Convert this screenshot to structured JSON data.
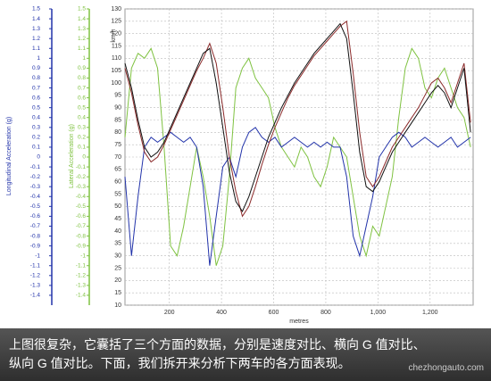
{
  "chart_data": {
    "type": "line",
    "x_label": "metres",
    "y_label": "km/h",
    "y2_label": "Lateral Acceleration (g)",
    "y3_label": "Longitudinal Acceleration (g)",
    "xlim": [
      30,
      1365
    ],
    "xticks": [
      200,
      400,
      600,
      800,
      {
        "value": 1000,
        "label": "1,000"
      },
      {
        "value": 1200,
        "label": "1,200"
      }
    ],
    "ylim": [
      10,
      130
    ],
    "yticks": [
      10,
      15,
      20,
      25,
      30,
      35,
      40,
      45,
      50,
      55,
      60,
      65,
      70,
      75,
      80,
      85,
      90,
      95,
      100,
      105,
      110,
      115,
      120,
      125,
      130
    ],
    "y2lim": [
      -1.5,
      1.5
    ],
    "y2ticks": [
      -1.4,
      -1.3,
      -1.2,
      -1.1,
      -1,
      -0.9,
      -0.8,
      -0.7,
      -0.6,
      -0.5,
      -0.4,
      -0.3,
      -0.2,
      -0.1,
      0,
      0.1,
      0.2,
      0.3,
      0.4,
      0.5,
      0.6,
      0.7,
      0.8,
      0.9,
      1,
      1.1,
      1.2,
      1.3,
      1.4,
      1.5
    ],
    "y2color": "#7fc241",
    "y3lim": [
      -1.5,
      1.5
    ],
    "y3ticks": [
      -1.4,
      -1.3,
      -1.2,
      -1.1,
      -1,
      -0.9,
      -0.8,
      -0.7,
      -0.6,
      -0.5,
      -0.4,
      -0.3,
      -0.2,
      -0.1,
      0,
      0.1,
      0.2,
      0.3,
      0.4,
      0.5,
      0.6,
      0.7,
      0.8,
      0.9,
      1,
      1.1,
      1.2,
      1.3,
      1.4,
      1.5
    ],
    "y3color": "#2233aa",
    "grid": true,
    "x": [
      30,
      55,
      80,
      105,
      130,
      155,
      180,
      205,
      230,
      255,
      280,
      305,
      330,
      355,
      380,
      405,
      430,
      455,
      480,
      505,
      530,
      555,
      580,
      605,
      630,
      655,
      680,
      705,
      730,
      755,
      780,
      805,
      830,
      855,
      880,
      905,
      930,
      955,
      980,
      1005,
      1030,
      1055,
      1080,
      1105,
      1130,
      1155,
      1180,
      1205,
      1230,
      1255,
      1280,
      1305,
      1330,
      1355
    ],
    "series": [
      {
        "color": "#7fc241",
        "axis": "y2",
        "values": [
          0.2,
          0.9,
          1.05,
          1.0,
          1.1,
          0.9,
          0.1,
          -0.9,
          -1.0,
          -0.7,
          -0.3,
          0.1,
          -0.2,
          -0.6,
          -1.1,
          -0.9,
          -0.2,
          0.7,
          0.9,
          1.0,
          0.8,
          0.7,
          0.6,
          0.3,
          0.1,
          0.0,
          -0.1,
          0.1,
          0.0,
          -0.2,
          -0.3,
          -0.1,
          0.2,
          0.1,
          0.0,
          -0.4,
          -0.8,
          -1.0,
          -0.7,
          -0.8,
          -0.5,
          -0.2,
          0.4,
          0.9,
          1.1,
          1.0,
          0.7,
          0.6,
          0.8,
          0.9,
          0.7,
          0.5,
          0.4,
          0.1
        ]
      },
      {
        "color": "#2233aa",
        "axis": "y3",
        "values": [
          -0.2,
          -1.0,
          -0.4,
          0.1,
          0.2,
          0.15,
          0.2,
          0.25,
          0.2,
          0.15,
          0.2,
          0.1,
          -0.3,
          -1.1,
          -0.6,
          -0.1,
          0.0,
          -0.2,
          0.1,
          0.25,
          0.3,
          0.2,
          0.15,
          0.2,
          0.1,
          0.15,
          0.2,
          0.15,
          0.1,
          0.15,
          0.1,
          0.15,
          0.1,
          0.1,
          -0.2,
          -0.8,
          -1.0,
          -0.7,
          -0.4,
          0.0,
          0.1,
          0.2,
          0.25,
          0.2,
          0.1,
          0.15,
          0.2,
          0.15,
          0.1,
          0.15,
          0.2,
          0.1,
          0.15,
          0.2
        ]
      },
      {
        "color": "#8b2a2a",
        "axis": "y",
        "values": [
          106,
          96,
          83,
          72,
          68,
          70,
          75,
          81,
          87,
          93,
          99,
          105,
          110,
          116,
          108,
          90,
          70,
          56,
          46,
          50,
          58,
          67,
          75,
          82,
          88,
          94,
          99,
          103,
          107,
          111,
          114,
          117,
          120,
          123,
          125,
          104,
          80,
          62,
          58,
          62,
          68,
          74,
          78,
          82,
          86,
          90,
          95,
          100,
          102,
          98,
          92,
          100,
          108,
          84
        ]
      },
      {
        "color": "#111111",
        "axis": "y",
        "values": [
          108,
          98,
          85,
          74,
          70,
          72,
          76,
          82,
          88,
          94,
          100,
          106,
          112,
          114,
          100,
          82,
          64,
          52,
          48,
          54,
          62,
          70,
          78,
          84,
          90,
          95,
          100,
          104,
          108,
          112,
          115,
          118,
          121,
          124,
          118,
          96,
          72,
          58,
          56,
          60,
          66,
          72,
          76,
          80,
          84,
          88,
          92,
          96,
          99,
          96,
          90,
          98,
          106,
          80
        ]
      }
    ],
    "caption": [
      "上图很复杂，它囊括了三个方面的数据，分别是速度对比、横向 G 值对比、",
      "纵向 G 值对比。下面，我们拆开来分析下两车的各方面表现。"
    ],
    "watermark": "chezhongauto.com"
  }
}
